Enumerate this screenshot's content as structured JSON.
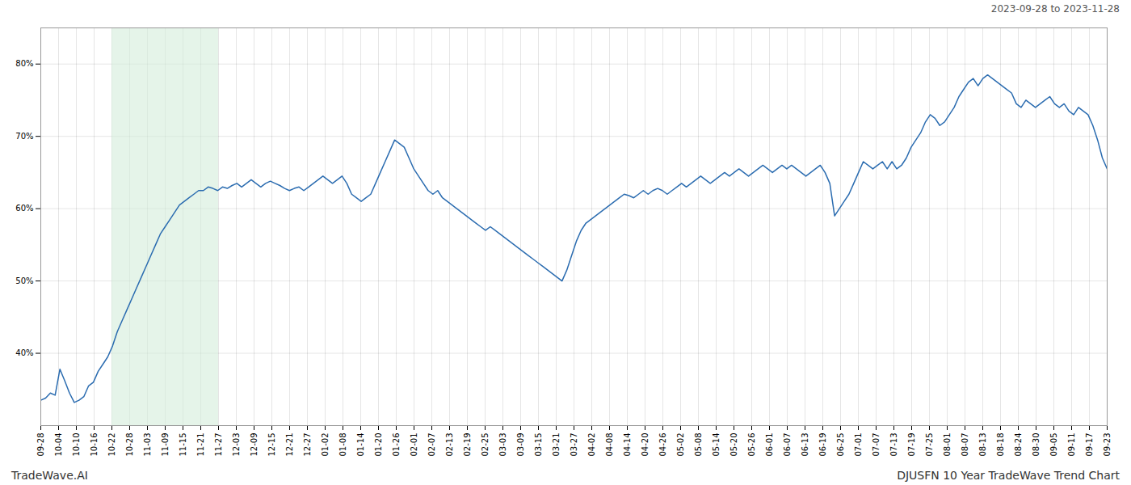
{
  "chart_data": {
    "type": "line",
    "subtitle": "2023-09-28 to 2023-11-28",
    "annotations": [
      "TradeWave.AI",
      "DJUSFN 10 Year TradeWave Trend Chart"
    ],
    "color": "#2b6cb0",
    "grid": true,
    "shaded_region": {
      "from": "10-22",
      "to": "11-27",
      "color": "#d4edda"
    },
    "xlim": [
      0,
      223
    ],
    "xticks": [
      {
        "value": 0,
        "label": "09-28"
      },
      {
        "value": 3.7167,
        "label": "10-04"
      },
      {
        "value": 7.4333,
        "label": "10-10"
      },
      {
        "value": 11.15,
        "label": "10-16"
      },
      {
        "value": 14.8667,
        "label": "10-22"
      },
      {
        "value": 18.5833,
        "label": "10-28"
      },
      {
        "value": 22.3,
        "label": "11-03"
      },
      {
        "value": 26.0167,
        "label": "11-09"
      },
      {
        "value": 29.7333,
        "label": "11-15"
      },
      {
        "value": 33.45,
        "label": "11-21"
      },
      {
        "value": 37.1667,
        "label": "11-27"
      },
      {
        "value": 40.8833,
        "label": "12-03"
      },
      {
        "value": 44.6,
        "label": "12-09"
      },
      {
        "value": 48.3167,
        "label": "12-15"
      },
      {
        "value": 52.0333,
        "label": "12-21"
      },
      {
        "value": 55.75,
        "label": "12-27"
      },
      {
        "value": 59.4667,
        "label": "01-02"
      },
      {
        "value": 63.1833,
        "label": "01-08"
      },
      {
        "value": 66.9,
        "label": "01-14"
      },
      {
        "value": 70.6167,
        "label": "01-20"
      },
      {
        "value": 74.3333,
        "label": "01-26"
      },
      {
        "value": 78.05,
        "label": "02-01"
      },
      {
        "value": 81.7667,
        "label": "02-07"
      },
      {
        "value": 85.4833,
        "label": "02-13"
      },
      {
        "value": 89.2,
        "label": "02-19"
      },
      {
        "value": 92.9167,
        "label": "02-25"
      },
      {
        "value": 96.6333,
        "label": "03-03"
      },
      {
        "value": 100.35,
        "label": "03-09"
      },
      {
        "value": 104.0667,
        "label": "03-15"
      },
      {
        "value": 107.7833,
        "label": "03-21"
      },
      {
        "value": 111.5,
        "label": "03-27"
      },
      {
        "value": 115.2167,
        "label": "04-02"
      },
      {
        "value": 118.9333,
        "label": "04-08"
      },
      {
        "value": 122.65,
        "label": "04-14"
      },
      {
        "value": 126.3667,
        "label": "04-20"
      },
      {
        "value": 130.0833,
        "label": "04-26"
      },
      {
        "value": 133.8,
        "label": "05-02"
      },
      {
        "value": 137.5167,
        "label": "05-08"
      },
      {
        "value": 141.2333,
        "label": "05-14"
      },
      {
        "value": 144.95,
        "label": "05-20"
      },
      {
        "value": 148.6667,
        "label": "05-26"
      },
      {
        "value": 152.3833,
        "label": "06-01"
      },
      {
        "value": 156.1,
        "label": "06-07"
      },
      {
        "value": 159.8167,
        "label": "06-13"
      },
      {
        "value": 163.5333,
        "label": "06-19"
      },
      {
        "value": 167.25,
        "label": "06-25"
      },
      {
        "value": 170.9667,
        "label": "07-01"
      },
      {
        "value": 174.6833,
        "label": "07-07"
      },
      {
        "value": 178.4,
        "label": "07-13"
      },
      {
        "value": 182.1167,
        "label": "07-19"
      },
      {
        "value": 185.8333,
        "label": "07-25"
      },
      {
        "value": 189.55,
        "label": "08-01"
      },
      {
        "value": 193.2667,
        "label": "08-07"
      },
      {
        "value": 196.9833,
        "label": "08-13"
      },
      {
        "value": 200.7,
        "label": "08-18"
      },
      {
        "value": 204.4167,
        "label": "08-24"
      },
      {
        "value": 208.1333,
        "label": "08-30"
      },
      {
        "value": 211.85,
        "label": "09-05"
      },
      {
        "value": 215.5667,
        "label": "09-11"
      },
      {
        "value": 219.2833,
        "label": "09-17"
      },
      {
        "value": 223,
        "label": "09-23"
      }
    ],
    "ylim": [
      30,
      85
    ],
    "yticks": [
      {
        "value": 40,
        "label": "40%"
      },
      {
        "value": 50,
        "label": "50%"
      },
      {
        "value": 60,
        "label": "60%"
      },
      {
        "value": 70,
        "label": "70%"
      },
      {
        "value": 80,
        "label": "80%"
      }
    ],
    "values": [
      33.5,
      33.8,
      34.5,
      34.2,
      37.8,
      36.2,
      34.5,
      33.2,
      33.5,
      34.0,
      35.5,
      36.0,
      37.5,
      38.5,
      39.5,
      41.0,
      43.0,
      44.5,
      46.0,
      47.5,
      49.0,
      50.5,
      52.0,
      53.5,
      55.0,
      56.5,
      57.5,
      58.5,
      59.5,
      60.5,
      61.0,
      61.5,
      62.0,
      62.5,
      62.5,
      63.0,
      62.8,
      62.5,
      63.0,
      62.8,
      63.2,
      63.5,
      63.0,
      63.5,
      64.0,
      63.5,
      63.0,
      63.5,
      63.8,
      63.5,
      63.2,
      62.8,
      62.5,
      62.8,
      63.0,
      62.5,
      63.0,
      63.5,
      64.0,
      64.5,
      64.0,
      63.5,
      64.0,
      64.5,
      63.5,
      62.0,
      61.5,
      61.0,
      61.5,
      62.0,
      63.5,
      65.0,
      66.5,
      68.0,
      69.5,
      69.0,
      68.5,
      67.0,
      65.5,
      64.5,
      63.5,
      62.5,
      62.0,
      62.5,
      61.5,
      61.0,
      60.5,
      60.0,
      59.5,
      59.0,
      58.5,
      58.0,
      57.5,
      57.0,
      57.5,
      57.0,
      56.5,
      56.0,
      55.5,
      55.0,
      54.5,
      54.0,
      53.5,
      53.0,
      52.5,
      52.0,
      51.5,
      51.0,
      50.5,
      50.0,
      51.5,
      53.5,
      55.5,
      57.0,
      58.0,
      58.5,
      59.0,
      59.5,
      60.0,
      60.5,
      61.0,
      61.5,
      62.0,
      61.8,
      61.5,
      62.0,
      62.5,
      62.0,
      62.5,
      62.8,
      62.5,
      62.0,
      62.5,
      63.0,
      63.5,
      63.0,
      63.5,
      64.0,
      64.5,
      64.0,
      63.5,
      64.0,
      64.5,
      65.0,
      64.5,
      65.0,
      65.5,
      65.0,
      64.5,
      65.0,
      65.5,
      66.0,
      65.5,
      65.0,
      65.5,
      66.0,
      65.5,
      66.0,
      65.5,
      65.0,
      64.5,
      65.0,
      65.5,
      66.0,
      65.0,
      63.5,
      59.0,
      60.0,
      61.0,
      62.0,
      63.5,
      65.0,
      66.5,
      66.0,
      65.5,
      66.0,
      66.5,
      65.5,
      66.5,
      65.5,
      66.0,
      67.0,
      68.5,
      69.5,
      70.5,
      72.0,
      73.0,
      72.5,
      71.5,
      72.0,
      73.0,
      74.0,
      75.5,
      76.5,
      77.5,
      78.0,
      77.0,
      78.0,
      78.5,
      78.0,
      77.5,
      77.0,
      76.5,
      76.0,
      74.5,
      74.0,
      75.0,
      74.5,
      74.0,
      74.5,
      75.0,
      75.5,
      74.5,
      74.0,
      74.5,
      73.5,
      73.0,
      74.0,
      73.5,
      73.0,
      71.5,
      69.5,
      67.0,
      65.5
    ]
  }
}
